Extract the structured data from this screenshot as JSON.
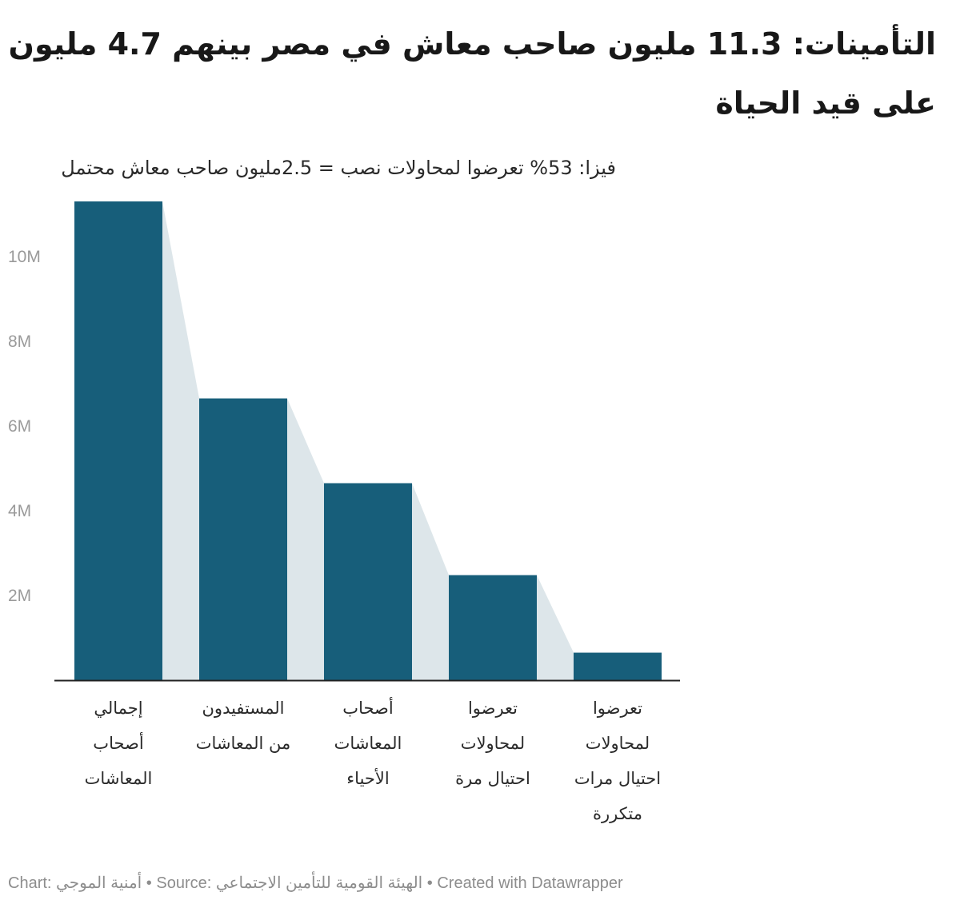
{
  "title": "التأمينات: 11.3 مليون صاحب معاش في مصر بينهم 4.7 مليون على قيد الحياة",
  "subtitle": "فيزا: 53% تعرضوا لمحاولات نصب = 2.5مليون صاحب معاش محتمل",
  "chart_data": {
    "type": "bar",
    "categories": [
      "إجمالي أصحاب المعاشات",
      "المستفيدون من المعاشات",
      "أصحاب المعاشات الأحياء",
      "تعرضوا لمحاولات احتيال مرة",
      "تعرضوا لمحاولات احتيال مرات متكررة"
    ],
    "category_lines": [
      [
        "إجمالي",
        "أصحاب",
        "المعاشات"
      ],
      [
        "المستفيدون",
        "من المعاشات"
      ],
      [
        "أصحاب",
        "المعاشات",
        "الأحياء"
      ],
      [
        "تعرضوا",
        "لمحاولات",
        "احتيال مرة"
      ],
      [
        "تعرضوا",
        "لمحاولات",
        "احتيال مرات",
        "متكررة"
      ]
    ],
    "values": [
      11300000,
      6650000,
      4650000,
      2480000,
      650000
    ],
    "ylim": [
      0,
      11300000
    ],
    "yticks": [
      2000000,
      4000000,
      6000000,
      8000000,
      10000000
    ],
    "ytick_labels": [
      "2M",
      "4M",
      "6M",
      "8M",
      "10M"
    ],
    "xlabel": "",
    "ylabel": "",
    "grid": false,
    "bar_color": "#175e7a",
    "connector_color": "#dde6ea",
    "axis_color": "#222222"
  },
  "footer": {
    "chart_label": "Chart:",
    "chart_author": "أمنية الموجي",
    "source_label": "Source:",
    "source_name": "الهيئة القومية للتأمين الاجتماعي",
    "created_with": "Created with Datawrapper",
    "separator": "•"
  }
}
